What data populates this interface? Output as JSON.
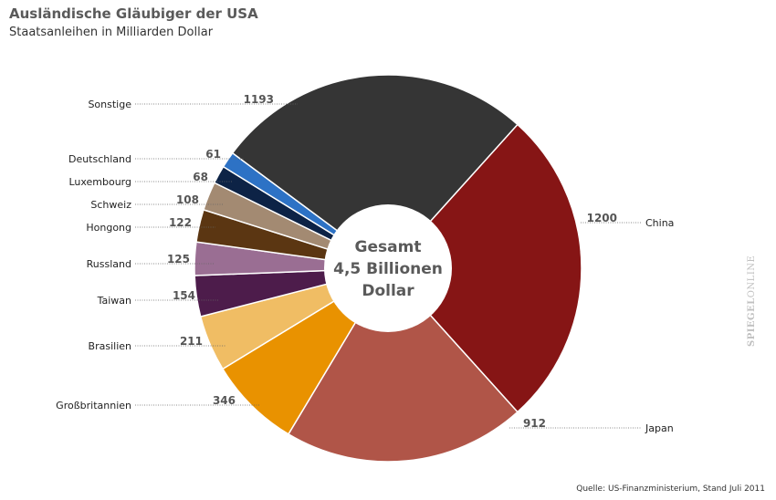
{
  "chart_data": {
    "type": "pie",
    "title": "Ausländische Gläubiger der USA",
    "subtitle": "Staatsanleihen in Milliarden Dollar",
    "center_text": [
      "Gesamt",
      "4,5 Billionen",
      "Dollar"
    ],
    "slices": [
      {
        "label": "China",
        "value": 1200,
        "value_label": "1200",
        "color": "#861515"
      },
      {
        "label": "Japan",
        "value": 912,
        "value_label": "912",
        "color": "#b05548"
      },
      {
        "label": "Großbritannien",
        "value": 346,
        "value_label": "346",
        "color": "#e99200"
      },
      {
        "label": "Brasilien",
        "value": 211,
        "value_label": "211",
        "color": "#f0bd64"
      },
      {
        "label": "Taiwan",
        "value": 154,
        "value_label": "154",
        "color": "#4d1c4b"
      },
      {
        "label": "Russland",
        "value": 125,
        "value_label": "125",
        "color": "#9a6e93"
      },
      {
        "label": "Hongong",
        "value": 122,
        "value_label": "122",
        "color": "#5b3612"
      },
      {
        "label": "Schweiz",
        "value": 108,
        "value_label": "108",
        "color": "#a38a72"
      },
      {
        "label": "Luxembourg",
        "value": 68,
        "value_label": "68",
        "color": "#0d2346"
      },
      {
        "label": "Deutschland",
        "value": 61,
        "value_label": "61",
        "color": "#2d72c5"
      },
      {
        "label": "Sonstige",
        "value": 1193,
        "value_label": "1193",
        "color": "#353535"
      }
    ]
  },
  "footer": {
    "source": "Quelle: US-Finanzministerium, Stand Juli 2011",
    "brand_bold": "SPIEGEL",
    "brand_regular": "ONLINE"
  }
}
